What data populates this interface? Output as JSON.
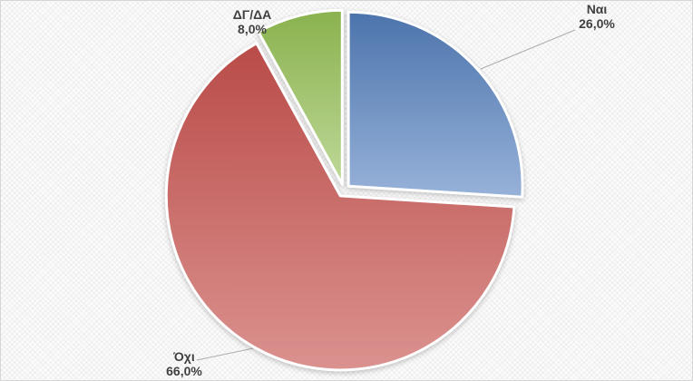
{
  "chart_data": {
    "type": "pie",
    "title": "",
    "legend": "none",
    "start_angle_deg": 0,
    "clockwise": true,
    "data_label_format": "category name + percentage with comma decimal",
    "categories": [
      "Ναι",
      "Όχι",
      "ΔΓ/ΔΑ"
    ],
    "values": [
      26.0,
      66.0,
      8.0
    ],
    "slices": [
      {
        "id": "nai",
        "category": "Ναι",
        "value": 26.0,
        "percent_label": "26,0%",
        "color_top": "#4c74ac",
        "color_bottom": "#97b2d9"
      },
      {
        "id": "oxi",
        "category": "Όχι",
        "value": 66.0,
        "percent_label": "66,0%",
        "color_top": "#b94b48",
        "color_bottom": "#db928f"
      },
      {
        "id": "dgda",
        "category": "ΔΓ/ΔΑ",
        "value": 8.0,
        "percent_label": "8,0%",
        "color_top": "#8ab24e",
        "color_bottom": "#bed898"
      }
    ]
  },
  "style": {
    "background": "#f6f6f6",
    "border_color": "#d6d6d6",
    "label_color": "#404040",
    "leader_line_color": "#adadad",
    "slice_stroke": "#ffffff"
  }
}
